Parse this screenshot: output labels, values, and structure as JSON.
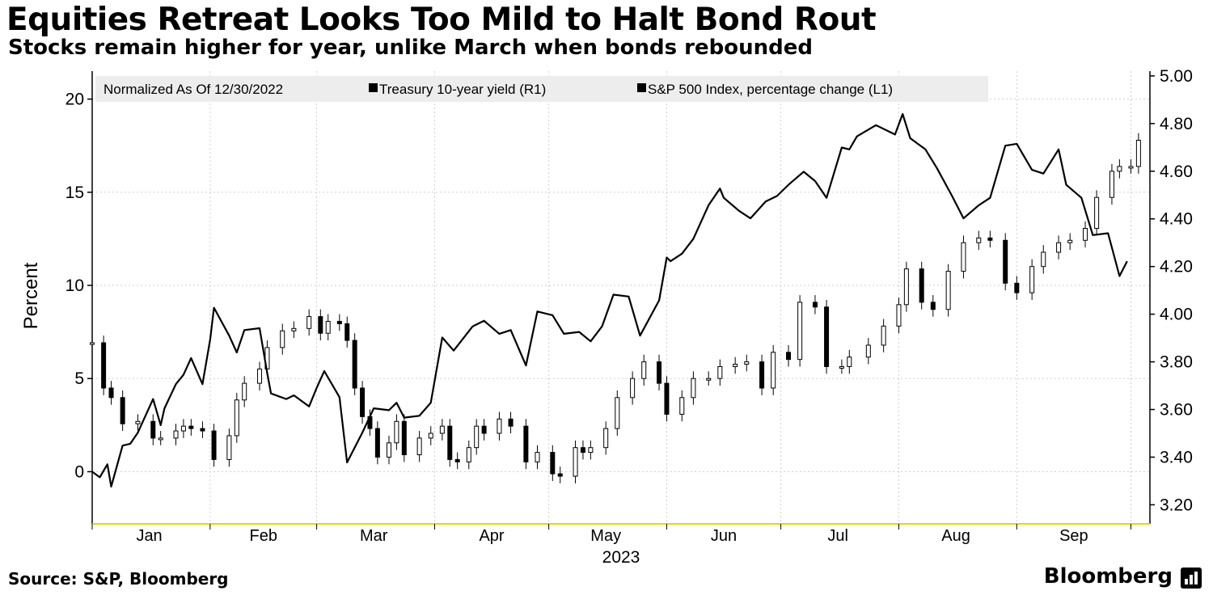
{
  "header": {
    "title": "Equities Retreat Looks Too Mild to Halt Bond Rout",
    "subtitle": "Stocks remain higher for year, unlike March when bonds rebounded"
  },
  "footer": {
    "source": "Source: S&P, Bloomberg",
    "brand": "Bloomberg"
  },
  "chart_data": {
    "type": "line",
    "legend": {
      "note": "Normalized As Of 12/30/2022",
      "entries": [
        "Treasury 10-year yield (R1)",
        "S&P 500 Index, percentage change (L1)"
      ],
      "placement": "top"
    },
    "ylabel": "Percent",
    "xlabel": "2023",
    "x_ticks": [
      "Jan",
      "Feb",
      "Mar",
      "Apr",
      "May",
      "Jun",
      "Jul",
      "Aug",
      "Sep"
    ],
    "y_left": {
      "ylim": [
        -2.8,
        21.5
      ],
      "ticks": [
        0,
        5,
        10,
        15,
        20
      ]
    },
    "y_right": {
      "ylim": [
        3.12,
        5.02
      ],
      "ticks": [
        "3.20",
        "3.40",
        "3.60",
        "3.80",
        "4.00",
        "4.20",
        "4.40",
        "4.60",
        "4.80",
        "5.00"
      ]
    },
    "grid": true,
    "series": [
      {
        "name": "Treasury 10-year yield (R1)",
        "axis": "right",
        "style": "line",
        "x": [
          "2023-01-01",
          "2023-01-04",
          "2023-01-06",
          "2023-01-09",
          "2023-01-13",
          "2023-01-17",
          "2023-01-19",
          "2023-01-23",
          "2023-01-25",
          "2023-01-27",
          "2023-01-30",
          "2023-02-02",
          "2023-02-06",
          "2023-02-08",
          "2023-02-10",
          "2023-02-14",
          "2023-02-16",
          "2023-02-20",
          "2023-02-23",
          "2023-02-27",
          "2023-03-02",
          "2023-03-04",
          "2023-03-07",
          "2023-03-09",
          "2023-03-11",
          "2023-03-13",
          "2023-03-15",
          "2023-03-17",
          "2023-03-20",
          "2023-03-22",
          "2023-03-24",
          "2023-03-28",
          "2023-03-31",
          "2023-04-03",
          "2023-04-05",
          "2023-04-07",
          "2023-04-10",
          "2023-04-12",
          "2023-04-14",
          "2023-04-18",
          "2023-04-21",
          "2023-04-25",
          "2023-04-28",
          "2023-05-02",
          "2023-05-04",
          "2023-05-08",
          "2023-05-10",
          "2023-05-12",
          "2023-05-16",
          "2023-05-19",
          "2023-05-23",
          "2023-05-26",
          "2023-05-30",
          "2023-06-01",
          "2023-06-05",
          "2023-06-08",
          "2023-06-12",
          "2023-06-15",
          "2023-06-19",
          "2023-06-22",
          "2023-06-26",
          "2023-06-29",
          "2023-07-03",
          "2023-07-06",
          "2023-07-10",
          "2023-07-13",
          "2023-07-17",
          "2023-07-19",
          "2023-07-24",
          "2023-07-28",
          "2023-08-01",
          "2023-08-03",
          "2023-08-07",
          "2023-08-10",
          "2023-08-14",
          "2023-08-18",
          "2023-08-22",
          "2023-08-25",
          "2023-08-29",
          "2023-09-01",
          "2023-09-05",
          "2023-09-08",
          "2023-09-12",
          "2023-09-15",
          "2023-09-19",
          "2023-09-22",
          "2023-09-26",
          "2023-09-28",
          "2023-10-01",
          "2023-10-03"
        ],
        "y": [
          3.88,
          3.69,
          3.65,
          3.54,
          3.55,
          3.48,
          3.48,
          3.51,
          3.53,
          3.52,
          3.51,
          3.39,
          3.49,
          3.64,
          3.71,
          3.77,
          3.86,
          3.93,
          3.94,
          3.99,
          3.92,
          3.97,
          3.96,
          3.89,
          3.69,
          3.57,
          3.52,
          3.4,
          3.46,
          3.55,
          3.41,
          3.48,
          3.5,
          3.53,
          3.39,
          3.38,
          3.44,
          3.53,
          3.5,
          3.56,
          3.53,
          3.38,
          3.42,
          3.33,
          3.32,
          3.44,
          3.42,
          3.44,
          3.52,
          3.65,
          3.73,
          3.8,
          3.71,
          3.58,
          3.65,
          3.73,
          3.73,
          3.78,
          3.79,
          3.8,
          3.69,
          3.84,
          3.81,
          4.05,
          4.03,
          3.78,
          3.78,
          3.82,
          3.87,
          3.95,
          4.04,
          4.19,
          4.05,
          4.02,
          4.18,
          4.3,
          4.32,
          4.31,
          4.13,
          4.09,
          4.2,
          4.26,
          4.3,
          4.31,
          4.36,
          4.49,
          4.6,
          4.62,
          4.62,
          4.73
        ],
        "ohlc_step_note": "rendered with daily candle-like ticks"
      },
      {
        "name": "S&P 500 Index, percentage change (L1)",
        "axis": "left",
        "style": "line",
        "x": [
          "2023-01-01",
          "2023-01-03",
          "2023-01-05",
          "2023-01-06",
          "2023-01-09",
          "2023-01-11",
          "2023-01-13",
          "2023-01-17",
          "2023-01-19",
          "2023-01-20",
          "2023-01-23",
          "2023-01-25",
          "2023-01-27",
          "2023-01-30",
          "2023-02-01",
          "2023-02-02",
          "2023-02-06",
          "2023-02-08",
          "2023-02-10",
          "2023-02-14",
          "2023-02-16",
          "2023-02-17",
          "2023-02-21",
          "2023-02-23",
          "2023-02-27",
          "2023-03-01",
          "2023-03-03",
          "2023-03-07",
          "2023-03-09",
          "2023-03-13",
          "2023-03-16",
          "2023-03-20",
          "2023-03-22",
          "2023-03-24",
          "2023-03-28",
          "2023-03-31",
          "2023-04-03",
          "2023-04-06",
          "2023-04-11",
          "2023-04-14",
          "2023-04-18",
          "2023-04-21",
          "2023-04-25",
          "2023-04-28",
          "2023-05-02",
          "2023-05-05",
          "2023-05-09",
          "2023-05-12",
          "2023-05-15",
          "2023-05-18",
          "2023-05-22",
          "2023-05-25",
          "2023-05-30",
          "2023-06-01",
          "2023-06-02",
          "2023-06-05",
          "2023-06-08",
          "2023-06-12",
          "2023-06-15",
          "2023-06-16",
          "2023-06-20",
          "2023-06-23",
          "2023-06-27",
          "2023-06-30",
          "2023-07-03",
          "2023-07-07",
          "2023-07-10",
          "2023-07-13",
          "2023-07-17",
          "2023-07-19",
          "2023-07-21",
          "2023-07-26",
          "2023-07-31",
          "2023-08-02",
          "2023-08-04",
          "2023-08-08",
          "2023-08-11",
          "2023-08-15",
          "2023-08-18",
          "2023-08-22",
          "2023-08-25",
          "2023-08-29",
          "2023-09-01",
          "2023-09-05",
          "2023-09-08",
          "2023-09-12",
          "2023-09-14",
          "2023-09-18",
          "2023-09-21",
          "2023-09-25",
          "2023-09-28",
          "2023-09-30"
        ],
        "y": [
          0.0,
          -0.3,
          0.4,
          -0.8,
          1.4,
          1.5,
          2.1,
          3.9,
          2.5,
          3.4,
          4.7,
          5.2,
          6.1,
          4.7,
          7.1,
          8.8,
          7.3,
          6.4,
          7.6,
          7.7,
          5.3,
          4.2,
          3.9,
          4.1,
          3.5,
          4.5,
          5.4,
          4.0,
          0.5,
          2.1,
          3.4,
          3.3,
          3.7,
          2.9,
          3.0,
          3.7,
          7.2,
          6.5,
          7.8,
          8.1,
          7.4,
          7.6,
          5.7,
          8.6,
          8.4,
          7.4,
          7.5,
          7.0,
          7.8,
          9.5,
          9.4,
          7.3,
          9.2,
          11.5,
          11.3,
          11.7,
          12.5,
          14.3,
          15.2,
          14.7,
          14.0,
          13.6,
          14.5,
          14.8,
          15.4,
          16.1,
          15.6,
          14.7,
          17.4,
          17.3,
          18.0,
          18.6,
          18.1,
          19.2,
          17.9,
          17.3,
          16.3,
          14.8,
          13.6,
          14.3,
          14.7,
          17.5,
          17.6,
          16.2,
          16.0,
          17.3,
          15.4,
          14.7,
          12.7,
          12.8,
          10.5,
          11.3
        ]
      }
    ]
  }
}
